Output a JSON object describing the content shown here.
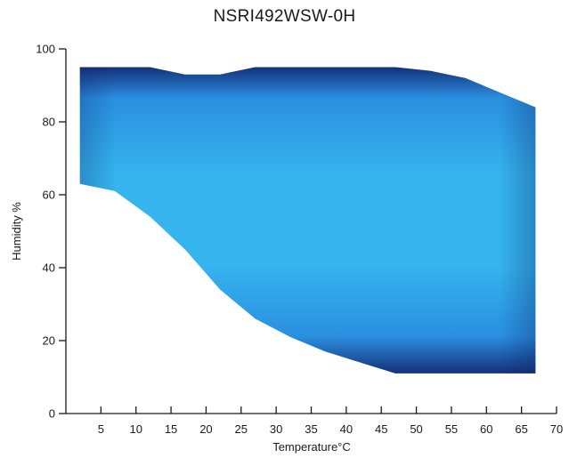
{
  "chart_data": {
    "type": "area",
    "title": "NSRI492WSW-0H",
    "xlabel": "Temperature°C",
    "ylabel": "Humidity %",
    "xlim": [
      0,
      70
    ],
    "ylim": [
      0,
      100
    ],
    "x_ticks": [
      5,
      10,
      15,
      20,
      25,
      30,
      35,
      40,
      45,
      50,
      55,
      60,
      65,
      70
    ],
    "y_ticks": [
      0,
      20,
      40,
      60,
      80,
      100
    ],
    "grid": false,
    "series": [
      {
        "upper": {
          "x": [
            2,
            12,
            17,
            22,
            27,
            32,
            42,
            47,
            52,
            57,
            62,
            67
          ],
          "y": [
            95,
            95,
            93,
            93,
            95,
            95,
            95,
            95,
            94,
            92,
            88,
            84
          ]
        },
        "lower": {
          "x": [
            2,
            7,
            12,
            17,
            22,
            27,
            32,
            37,
            42,
            47,
            52,
            57,
            62,
            67
          ],
          "y": [
            63,
            61,
            54,
            45,
            34,
            26,
            21,
            17,
            14,
            11,
            11,
            11,
            11,
            11
          ]
        }
      }
    ],
    "colors": {
      "edge": "#14317a",
      "mid": "#2a8fe0",
      "center": "#35b4ee"
    }
  }
}
